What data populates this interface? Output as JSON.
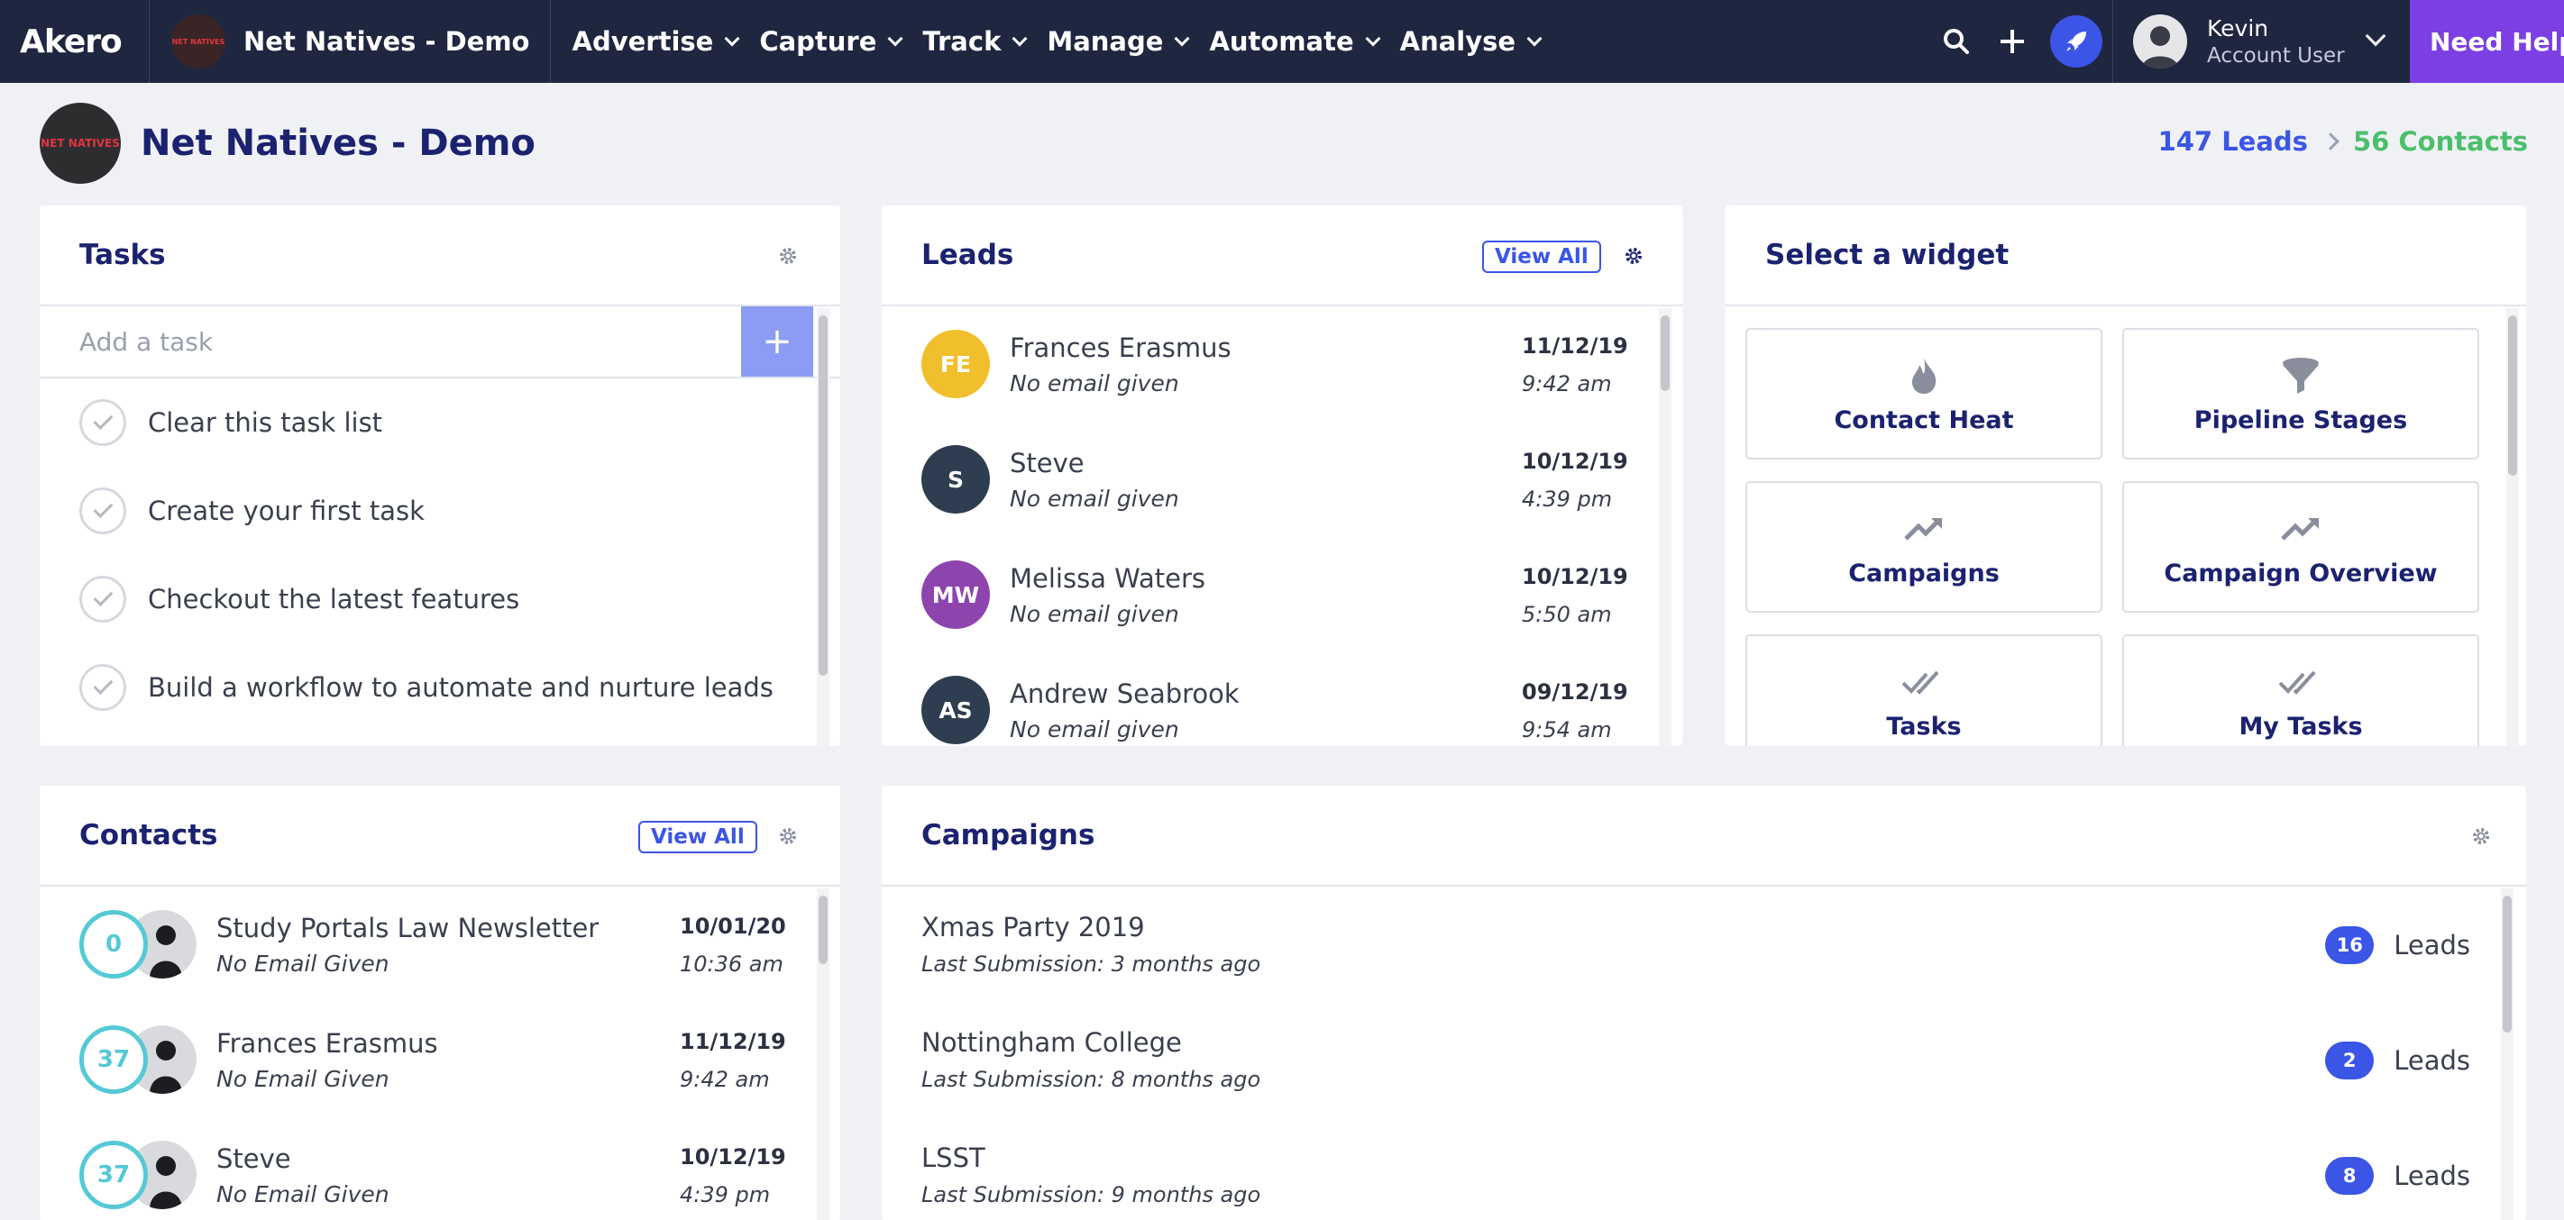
{
  "nav": {
    "brand": "Akero",
    "account_logo_text": "NET NATIVES",
    "account_name": "Net Natives - Demo",
    "menu": [
      "Advertise",
      "Capture",
      "Track",
      "Manage",
      "Automate",
      "Analyse"
    ],
    "tools": [
      "search-icon",
      "plus-icon",
      "rocket-icon"
    ],
    "user_name": "Kevin",
    "user_role": "Account User",
    "help_label": "Need Help"
  },
  "header": {
    "title": "Net Natives - Demo",
    "leads": "147 Leads",
    "contacts": "56 Contacts"
  },
  "tasks": {
    "title": "Tasks",
    "placeholder": "Add a task",
    "add_label": "+",
    "items": [
      "Clear this task list",
      "Create your first task",
      "Checkout the latest features",
      "Build a workflow to automate and nurture leads"
    ]
  },
  "leads": {
    "title": "Leads",
    "view_all": "View All",
    "items": [
      {
        "initials": "FE",
        "name": "Frances Erasmus",
        "sub": "No email given",
        "date": "11/12/19",
        "time": "9:42 am",
        "color": "#f0bf2b"
      },
      {
        "initials": "S",
        "name": "Steve",
        "sub": "No email given",
        "date": "10/12/19",
        "time": "4:39 pm",
        "color": "#2e3d4f"
      },
      {
        "initials": "MW",
        "name": "Melissa Waters",
        "sub": "No email given",
        "date": "10/12/19",
        "time": "5:50 am",
        "color": "#8e44ad"
      },
      {
        "initials": "AS",
        "name": "Andrew Seabrook",
        "sub": "No email given",
        "date": "09/12/19",
        "time": "9:54 am",
        "color": "#2e3d4f"
      }
    ]
  },
  "widgets": {
    "title": "Select a widget",
    "items": [
      {
        "label": "Contact Heat",
        "icon": "flame-icon"
      },
      {
        "label": "Pipeline Stages",
        "icon": "funnel-icon"
      },
      {
        "label": "Campaigns",
        "icon": "trend-up-icon"
      },
      {
        "label": "Campaign Overview",
        "icon": "trend-up-icon"
      },
      {
        "label": "Tasks",
        "icon": "double-check-icon"
      },
      {
        "label": "My Tasks",
        "icon": "double-check-icon"
      }
    ]
  },
  "contacts": {
    "title": "Contacts",
    "view_all": "View All",
    "items": [
      {
        "score": "0",
        "name": "Study Portals Law Newsletter",
        "sub": "No Email Given",
        "date": "10/01/20",
        "time": "10:36 am"
      },
      {
        "score": "37",
        "name": "Frances Erasmus",
        "sub": "No Email Given",
        "date": "11/12/19",
        "time": "9:42 am"
      },
      {
        "score": "37",
        "name": "Steve",
        "sub": "No Email Given",
        "date": "10/12/19",
        "time": "4:39 pm"
      }
    ]
  },
  "campaigns": {
    "title": "Campaigns",
    "items": [
      {
        "name": "Xmas Party 2019",
        "sub": "Last Submission: 3 months ago",
        "count": "16",
        "unit": "Leads"
      },
      {
        "name": "Nottingham College",
        "sub": "Last Submission: 8 months ago",
        "count": "2",
        "unit": "Leads"
      },
      {
        "name": "LSST",
        "sub": "Last Submission: 9 months ago",
        "count": "8",
        "unit": "Leads"
      }
    ]
  },
  "colors": {
    "nav_bg": "#1f2640",
    "accent": "#3b55e6",
    "help": "#7b3fe4",
    "contacts_green": "#4bbf6b",
    "score_teal": "#55c9d6"
  }
}
